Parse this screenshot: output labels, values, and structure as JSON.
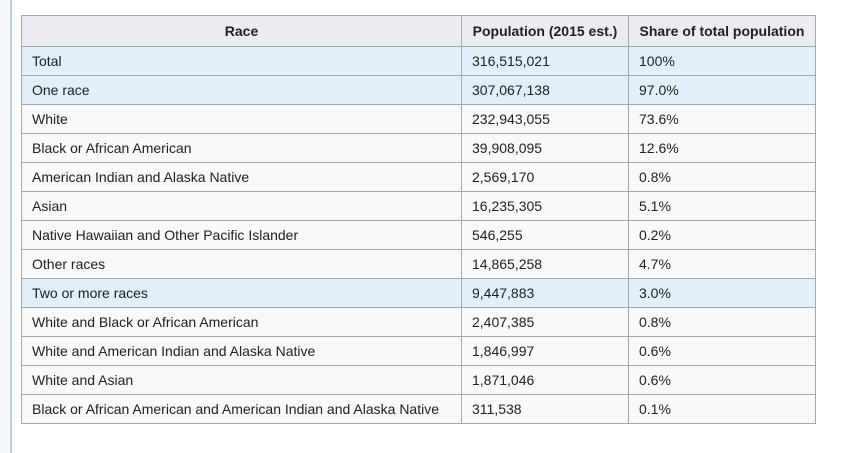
{
  "colors": {
    "table_border": "#a2a9b1",
    "header_bg": "#eaecf0",
    "row_bg": "#f8f9fa",
    "highlight_row_bg": "#e1effb",
    "text": "#202122",
    "content_divider": "#aed4ee",
    "side_rail_bg": "#f5f6f7"
  },
  "table": {
    "headers": [
      "Race",
      "Population (2015 est.)",
      "Share of total population"
    ],
    "rows": [
      {
        "race": "Total",
        "population": "316,515,021",
        "share": "100%",
        "highlight": true,
        "indent": false
      },
      {
        "race": "One race",
        "population": "307,067,138",
        "share": "97.0%",
        "highlight": true,
        "indent": false
      },
      {
        "race": "White",
        "population": "232,943,055",
        "share": "73.6%",
        "highlight": false,
        "indent": true
      },
      {
        "race": "Black or African American",
        "population": "39,908,095",
        "share": "12.6%",
        "highlight": false,
        "indent": true
      },
      {
        "race": "American Indian and Alaska Native",
        "population": "2,569,170",
        "share": "0.8%",
        "highlight": false,
        "indent": true
      },
      {
        "race": "Asian",
        "population": "16,235,305",
        "share": "5.1%",
        "highlight": false,
        "indent": true
      },
      {
        "race": "Native Hawaiian and Other Pacific Islander",
        "population": "546,255",
        "share": "0.2%",
        "highlight": false,
        "indent": true
      },
      {
        "race": "Other races",
        "population": "14,865,258",
        "share": "4.7%",
        "highlight": false,
        "indent": true
      },
      {
        "race": "Two or more races",
        "population": "9,447,883",
        "share": "3.0%",
        "highlight": true,
        "indent": false
      },
      {
        "race": "White and Black or African American",
        "population": "2,407,385",
        "share": "0.8%",
        "highlight": false,
        "indent": true
      },
      {
        "race": "White and American Indian and Alaska Native",
        "population": "1,846,997",
        "share": "0.6%",
        "highlight": false,
        "indent": true
      },
      {
        "race": "White and Asian",
        "population": "1,871,046",
        "share": "0.6%",
        "highlight": false,
        "indent": true
      },
      {
        "race": "Black or African American and American Indian and Alaska Native",
        "population": "311,538",
        "share": "0.1%",
        "highlight": false,
        "indent": true
      }
    ]
  }
}
